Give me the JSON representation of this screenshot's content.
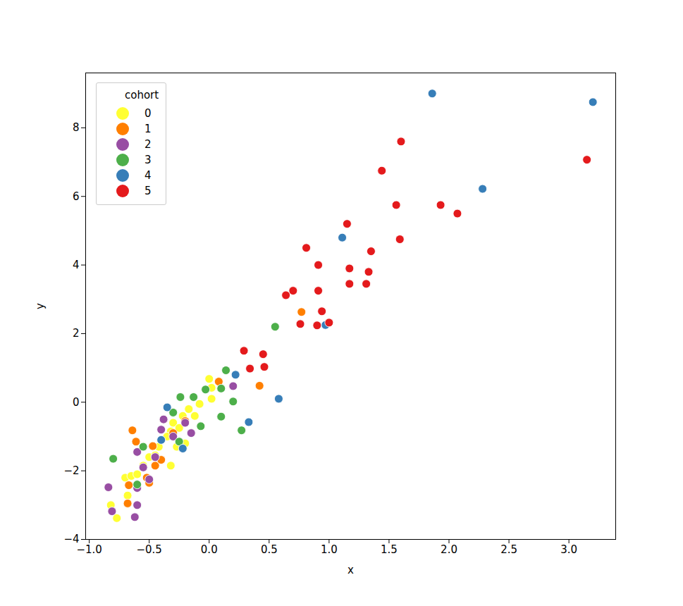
{
  "chart_data": {
    "type": "scatter",
    "x_label": "x",
    "y_label": "y",
    "legend_title": "cohort",
    "legend": "upper left",
    "marker": "circle",
    "xlim": [
      -1.03,
      3.39
    ],
    "ylim": [
      -4,
      9.6
    ],
    "xticks": [
      {
        "value": -1.0,
        "label": "−1.0"
      },
      {
        "value": -0.5,
        "label": "−0.5"
      },
      {
        "value": 0,
        "label": "0.0"
      },
      0.5,
      {
        "value": 1,
        "label": "1.0"
      },
      1.5,
      {
        "value": 2,
        "label": "2.0"
      },
      2.5,
      {
        "value": 3,
        "label": "3.0"
      }
    ],
    "yticks": [
      {
        "value": -4,
        "label": "−4"
      },
      {
        "value": -2,
        "label": "−2"
      },
      0,
      2,
      4,
      6,
      8
    ],
    "series": [
      {
        "name": "0",
        "color": "#ffff33",
        "x": [
          -0.82,
          -0.77,
          -0.68,
          -0.7,
          -0.65,
          -0.6,
          -0.55,
          -0.5,
          -0.42,
          -0.38,
          -0.32,
          -0.3,
          -0.25,
          -0.2,
          -0.32,
          -0.27,
          -0.22,
          -0.17,
          -0.12,
          -0.08,
          0.0,
          0.02,
          0.02,
          -0.35,
          -0.45
        ],
        "y": [
          -3.0,
          -3.38,
          -2.72,
          -2.2,
          -2.15,
          -2.1,
          -1.85,
          -1.6,
          -1.3,
          -0.5,
          -0.85,
          -0.6,
          -0.75,
          -1.2,
          -1.85,
          -1.3,
          -0.4,
          -0.2,
          -0.4,
          -0.05,
          0.68,
          0.42,
          0.1,
          -1.0,
          -1.55
        ]
      },
      {
        "name": "1",
        "color": "#ff7f00",
        "x": [
          0.77,
          0.42,
          0.08,
          -0.64,
          -0.61,
          -0.47,
          -0.45,
          -0.52,
          -0.67,
          -0.68,
          -0.5,
          -0.4,
          -0.2,
          -0.3
        ],
        "y": [
          2.63,
          0.48,
          0.6,
          -0.82,
          -1.15,
          -1.28,
          -1.85,
          -2.2,
          -2.42,
          -2.95,
          -2.35,
          -1.68,
          -0.55,
          -0.9
        ]
      },
      {
        "name": "2",
        "color": "#984ea3",
        "x": [
          -0.84,
          -0.81,
          -0.62,
          -0.6,
          -0.6,
          -0.5,
          -0.6,
          -0.55,
          -0.4,
          -0.38,
          -0.2,
          -0.15,
          0.2,
          -0.3,
          -0.45
        ],
        "y": [
          -2.48,
          -3.18,
          -3.35,
          -3.0,
          -2.5,
          -2.25,
          -1.45,
          -1.9,
          -0.8,
          -0.5,
          -0.6,
          -0.9,
          0.47,
          -1.0,
          -1.6
        ]
      },
      {
        "name": "3",
        "color": "#4daf4a",
        "x": [
          0.55,
          0.14,
          -0.03,
          0.1,
          -0.07,
          0.2,
          0.1,
          0.27,
          -0.24,
          -0.13,
          -0.55,
          -0.8,
          -0.6,
          -0.3,
          -0.25
        ],
        "y": [
          2.2,
          0.93,
          0.37,
          0.4,
          -0.7,
          0.02,
          -0.42,
          -0.82,
          0.15,
          0.15,
          -1.3,
          -1.65,
          -2.4,
          -0.3,
          -1.15
        ]
      },
      {
        "name": "4",
        "color": "#377eb8",
        "x": [
          1.86,
          3.2,
          2.28,
          1.11,
          0.97,
          0.22,
          0.58,
          0.33,
          -0.35,
          -0.22,
          -0.4
        ],
        "y": [
          9.0,
          8.75,
          6.22,
          4.8,
          2.25,
          0.8,
          0.1,
          -0.58,
          -0.15,
          -1.35,
          -1.1
        ]
      },
      {
        "name": "5",
        "color": "#e41a1c",
        "x": [
          1.6,
          1.44,
          3.15,
          1.56,
          1.93,
          2.07,
          1.15,
          1.59,
          0.81,
          1.35,
          0.91,
          1.17,
          1.33,
          1.17,
          1.31,
          0.7,
          0.64,
          0.91,
          0.94,
          0.76,
          0.9,
          1.0,
          0.29,
          0.45,
          0.46,
          0.34
        ],
        "y": [
          7.6,
          6.75,
          7.07,
          5.75,
          5.75,
          5.5,
          5.2,
          4.75,
          4.5,
          4.4,
          4.0,
          3.9,
          3.8,
          3.45,
          3.45,
          3.25,
          3.12,
          3.25,
          2.65,
          2.28,
          2.24,
          2.32,
          1.5,
          1.4,
          1.03,
          0.98
        ]
      }
    ]
  }
}
